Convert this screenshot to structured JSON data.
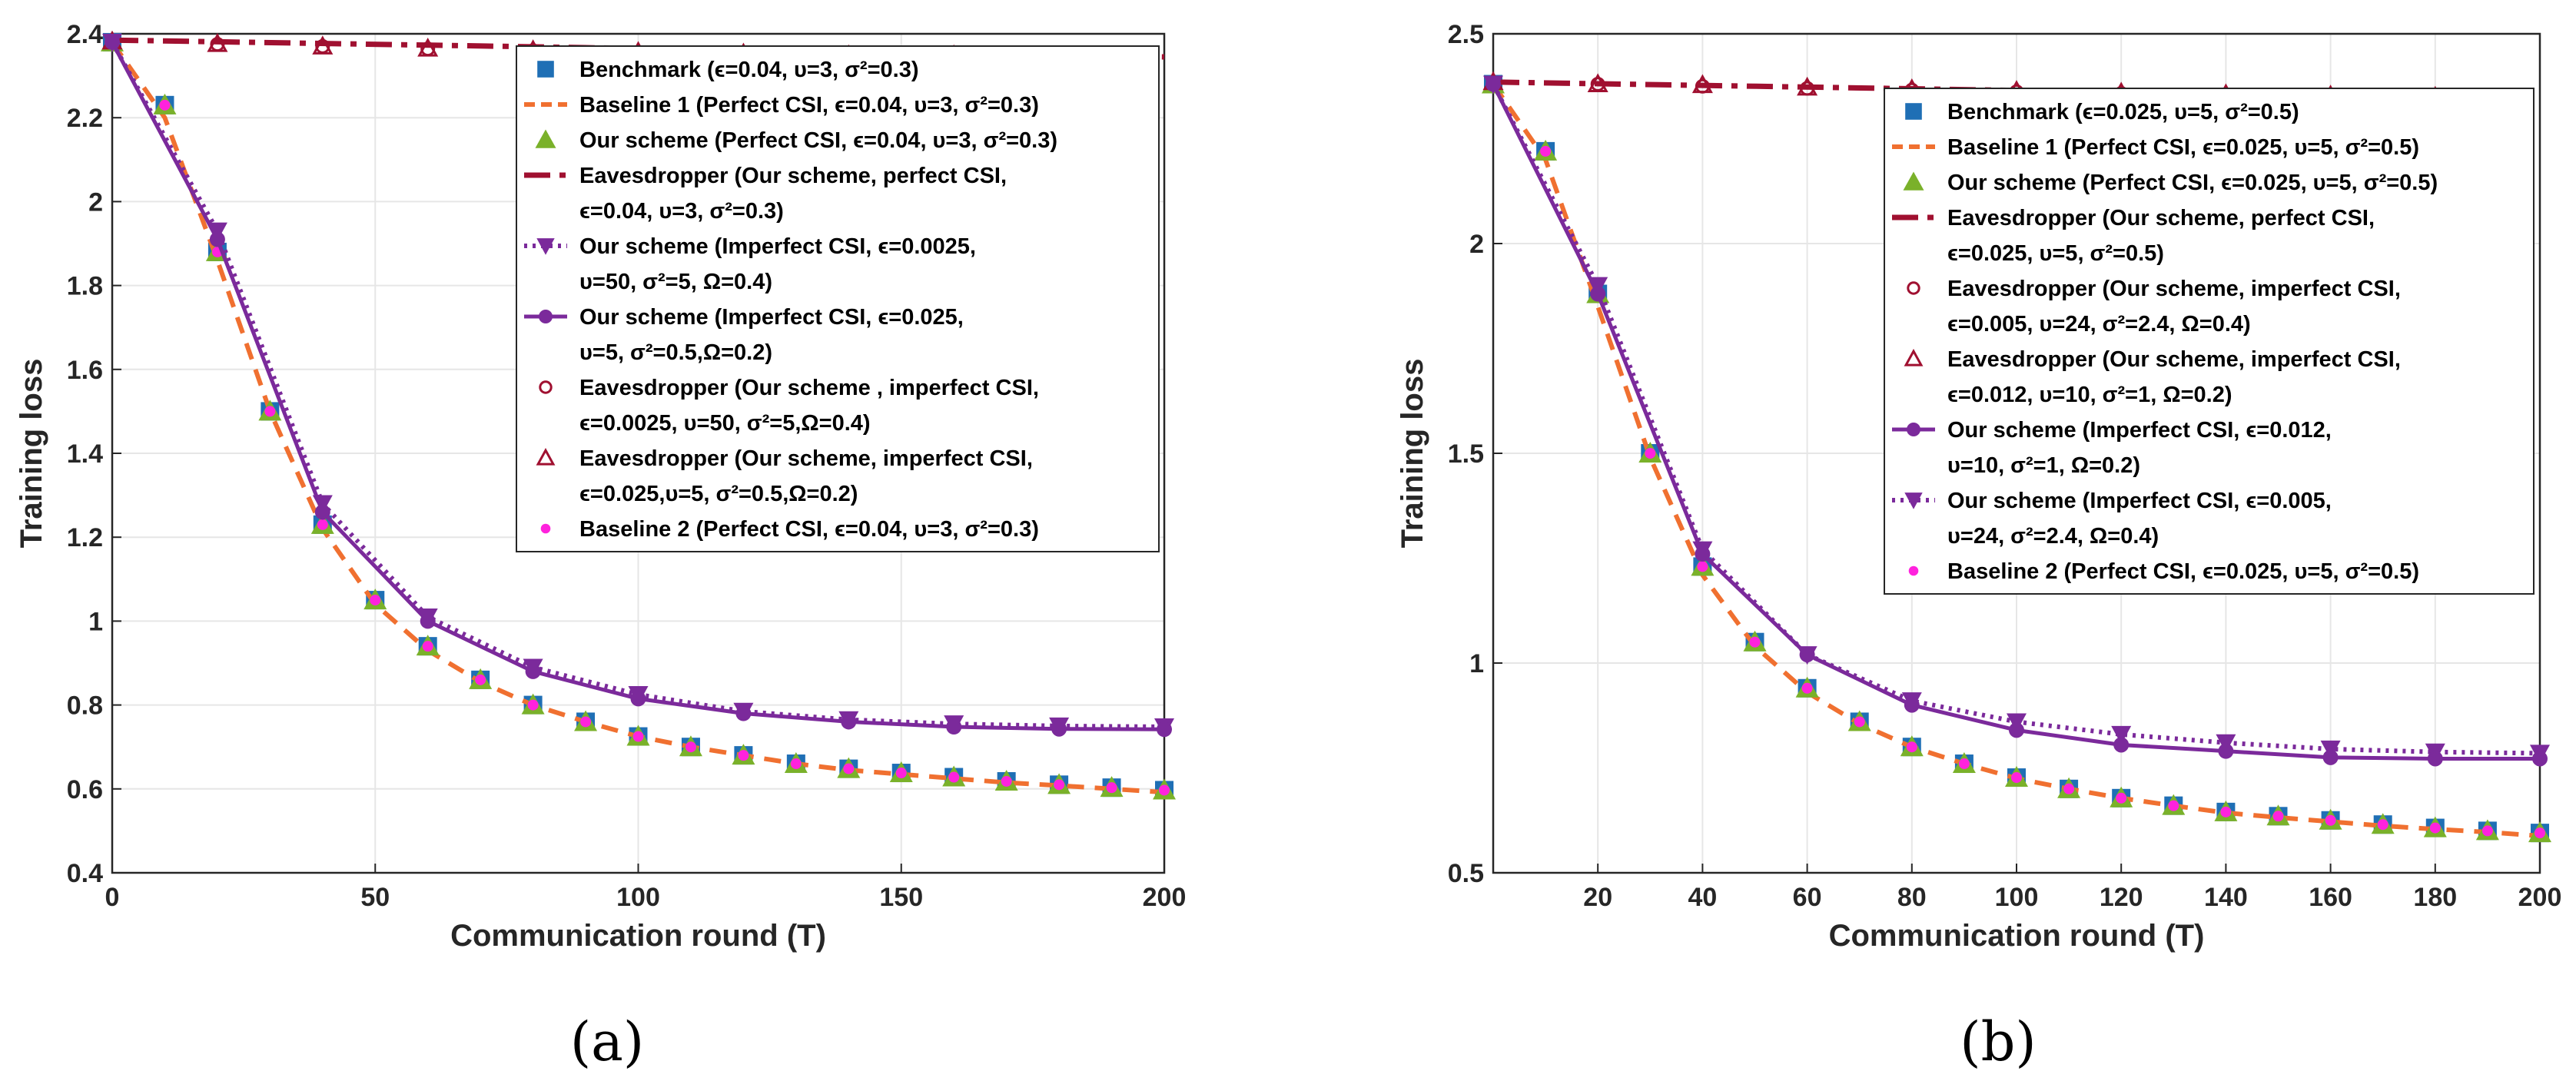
{
  "colors": {
    "benchmark": "#1f6fb5",
    "baseline1": "#f07030",
    "ours_perfect": "#7ab12a",
    "eavesdropper": "#a01030",
    "ours_imperfect": "#7b2a9b",
    "baseline2": "#ff22dd",
    "grid": "#e6e6e6",
    "axis": "#262626"
  },
  "chart_data": [
    {
      "panel": "(a)",
      "type": "line",
      "xlabel": "Communication round (T)",
      "ylabel": "Training loss",
      "xlim": [
        0,
        200
      ],
      "ylim": [
        0.4,
        2.4
      ],
      "xticks": [
        0,
        50,
        100,
        150,
        200
      ],
      "xtick_labels": [
        "0",
        "50",
        "100",
        "150",
        "200"
      ],
      "yticks": [
        0.4,
        0.6,
        0.8,
        1.0,
        1.2,
        1.4,
        1.6,
        1.8,
        2.0,
        2.2,
        2.4
      ],
      "ytick_labels": [
        "0.4",
        "0.6",
        "0.8",
        "1",
        "1.2",
        "1.4",
        "1.6",
        "1.8",
        "2",
        "2.2",
        "2.4"
      ],
      "grid": true,
      "legend_position": "top-right",
      "legend": [
        {
          "key": "benchmark",
          "lines": [
            "Benchmark (ϵ=0.04, υ=3, σ²=0.3)"
          ]
        },
        {
          "key": "baseline1",
          "lines": [
            "Baseline 1 (Perfect CSI, ϵ=0.04, υ=3, σ²=0.3)"
          ]
        },
        {
          "key": "ours_perfect",
          "lines": [
            "Our scheme (Perfect CSI, ϵ=0.04, υ=3, σ²=0.3)"
          ]
        },
        {
          "key": "eve_perfect",
          "lines": [
            "Eavesdropper (Our scheme, perfect CSI,",
            "ϵ=0.04, υ=3, σ²=0.3)"
          ]
        },
        {
          "key": "ours_imp_tri",
          "lines": [
            "Our scheme (Imperfect CSI, ϵ=0.0025,",
            "υ=50, σ²=5, Ω=0.4)"
          ]
        },
        {
          "key": "ours_imp_circ",
          "lines": [
            "Our scheme (Imperfect CSI, ϵ=0.025,",
            "υ=5, σ²=0.5,Ω=0.2)"
          ]
        },
        {
          "key": "eve_imp_circ",
          "lines": [
            "Eavesdropper (Our scheme , imperfect CSI,",
            " ϵ=0.0025, υ=50, σ²=5,Ω=0.4)"
          ]
        },
        {
          "key": "eve_imp_tri",
          "lines": [
            "Eavesdropper (Our scheme, imperfect CSI,",
            "ϵ=0.025,υ=5, σ²=0.5,Ω=0.2)"
          ]
        },
        {
          "key": "baseline2",
          "lines": [
            "Baseline 2 (Perfect CSI, ϵ=0.04, υ=3, σ²=0.3)"
          ]
        }
      ],
      "series": [
        {
          "key": "benchmark",
          "style": "marker-square",
          "x": [
            0,
            10,
            20,
            30,
            40,
            50,
            60,
            70,
            80,
            90,
            100,
            110,
            120,
            130,
            140,
            150,
            160,
            170,
            180,
            190,
            200
          ],
          "y": [
            2.38,
            2.23,
            1.88,
            1.5,
            1.23,
            1.05,
            0.94,
            0.86,
            0.8,
            0.76,
            0.725,
            0.7,
            0.68,
            0.66,
            0.648,
            0.638,
            0.628,
            0.618,
            0.61,
            0.603,
            0.597
          ]
        },
        {
          "key": "baseline1",
          "style": "dashed-orange",
          "x": [
            0,
            10,
            20,
            30,
            40,
            50,
            60,
            70,
            80,
            90,
            100,
            110,
            120,
            130,
            140,
            150,
            160,
            170,
            180,
            190,
            200
          ],
          "y": [
            2.38,
            2.2,
            1.86,
            1.5,
            1.22,
            1.04,
            0.93,
            0.855,
            0.8,
            0.76,
            0.725,
            0.7,
            0.68,
            0.66,
            0.645,
            0.635,
            0.625,
            0.615,
            0.608,
            0.6,
            0.592
          ]
        },
        {
          "key": "ours_perfect",
          "style": "marker-triangle-green",
          "x": [
            0,
            10,
            20,
            30,
            40,
            50,
            60,
            70,
            80,
            90,
            100,
            110,
            120,
            130,
            140,
            150,
            160,
            170,
            180,
            190,
            200
          ],
          "y": [
            2.38,
            2.23,
            1.88,
            1.5,
            1.23,
            1.05,
            0.94,
            0.86,
            0.8,
            0.76,
            0.725,
            0.7,
            0.68,
            0.66,
            0.648,
            0.638,
            0.628,
            0.618,
            0.61,
            0.603,
            0.597
          ]
        },
        {
          "key": "baseline2",
          "style": "marker-dot-magenta",
          "x": [
            0,
            10,
            20,
            30,
            40,
            50,
            60,
            70,
            80,
            90,
            100,
            110,
            120,
            130,
            140,
            150,
            160,
            170,
            180,
            190,
            200
          ],
          "y": [
            2.38,
            2.23,
            1.88,
            1.5,
            1.23,
            1.05,
            0.94,
            0.86,
            0.8,
            0.76,
            0.725,
            0.7,
            0.68,
            0.66,
            0.648,
            0.638,
            0.628,
            0.618,
            0.61,
            0.603,
            0.597
          ]
        },
        {
          "key": "eve_perfect",
          "style": "dashdot-red",
          "x": [
            0,
            200
          ],
          "y": [
            2.385,
            2.345
          ]
        },
        {
          "key": "eve_imp_circ",
          "style": "marker-circle-red",
          "x": [
            0,
            20,
            40,
            60,
            80,
            100,
            120,
            140,
            160,
            180
          ],
          "y": [
            2.382,
            2.375,
            2.37,
            2.364,
            2.36,
            2.356,
            2.352,
            2.348,
            2.348,
            2.345
          ]
        },
        {
          "key": "eve_imp_tri",
          "style": "marker-triangle-red",
          "x": [
            0,
            20,
            40,
            60,
            80,
            100,
            120,
            140,
            160,
            180
          ],
          "y": [
            2.382,
            2.376,
            2.37,
            2.365,
            2.361,
            2.357,
            2.353,
            2.349,
            2.349,
            2.346
          ]
        },
        {
          "key": "ours_imp_tri",
          "style": "dotted-purple-tri",
          "x": [
            0,
            20,
            40,
            60,
            80,
            100,
            120,
            140,
            160,
            180,
            200
          ],
          "y": [
            2.38,
            1.93,
            1.28,
            1.01,
            0.89,
            0.825,
            0.785,
            0.765,
            0.755,
            0.75,
            0.748
          ]
        },
        {
          "key": "ours_imp_circ",
          "style": "solid-purple-circle",
          "x": [
            0,
            20,
            40,
            60,
            80,
            100,
            120,
            140,
            160,
            180,
            200
          ],
          "y": [
            2.38,
            1.91,
            1.26,
            1.0,
            0.88,
            0.815,
            0.78,
            0.76,
            0.748,
            0.743,
            0.742
          ]
        }
      ]
    },
    {
      "panel": "(b)",
      "type": "line",
      "xlabel": "Communication round (T)",
      "ylabel": "Training loss",
      "xlim": [
        0,
        200
      ],
      "ylim": [
        0.5,
        2.5
      ],
      "xticks": [
        20,
        40,
        60,
        80,
        100,
        120,
        140,
        160,
        180,
        200
      ],
      "xtick_labels": [
        "20",
        "40",
        "60",
        "80",
        "100",
        "120",
        "140",
        "160",
        "180",
        "200"
      ],
      "yticks": [
        0.5,
        1.0,
        1.5,
        2.0,
        2.5
      ],
      "ytick_labels": [
        "0.5",
        "1",
        "1.5",
        "2",
        "2.5"
      ],
      "grid": true,
      "legend_position": "top-right",
      "legend": [
        {
          "key": "benchmark",
          "lines": [
            "Benchmark (ϵ=0.025, υ=5, σ²=0.5)"
          ]
        },
        {
          "key": "baseline1",
          "lines": [
            "Baseline 1 (Perfect CSI, ϵ=0.025, υ=5, σ²=0.5)"
          ]
        },
        {
          "key": "ours_perfect",
          "lines": [
            "Our scheme (Perfect CSI, ϵ=0.025, υ=5, σ²=0.5)"
          ]
        },
        {
          "key": "eve_perfect",
          "lines": [
            "Eavesdropper (Our scheme, perfect CSI,",
            "ϵ=0.025, υ=5, σ²=0.5)"
          ]
        },
        {
          "key": "eve_imp_circ",
          "lines": [
            "Eavesdropper (Our scheme, imperfect CSI,",
            "ϵ=0.005, υ=24, σ²=2.4, Ω=0.4)"
          ]
        },
        {
          "key": "eve_imp_tri",
          "lines": [
            "Eavesdropper (Our scheme, imperfect CSI,",
            "ϵ=0.012, υ=10, σ²=1, Ω=0.2)"
          ]
        },
        {
          "key": "ours_imp_circ",
          "lines": [
            "Our scheme (Imperfect CSI, ϵ=0.012,",
            "υ=10, σ²=1, Ω=0.2)"
          ]
        },
        {
          "key": "ours_imp_tri",
          "lines": [
            "Our scheme (Imperfect CSI, ϵ=0.005,",
            " υ=24, σ²=2.4, Ω=0.4)"
          ]
        },
        {
          "key": "baseline2",
          "lines": [
            "Baseline 2 (Perfect CSI, ϵ=0.025, υ=5, σ²=0.5)"
          ]
        }
      ],
      "series": [
        {
          "key": "benchmark",
          "style": "marker-square",
          "x": [
            0,
            10,
            20,
            30,
            40,
            50,
            60,
            70,
            80,
            90,
            100,
            110,
            120,
            130,
            140,
            150,
            160,
            170,
            180,
            190,
            200
          ],
          "y": [
            2.38,
            2.22,
            1.88,
            1.5,
            1.23,
            1.05,
            0.94,
            0.86,
            0.8,
            0.76,
            0.727,
            0.7,
            0.678,
            0.66,
            0.645,
            0.635,
            0.625,
            0.615,
            0.607,
            0.6,
            0.595
          ]
        },
        {
          "key": "baseline1",
          "style": "dashed-orange",
          "x": [
            0,
            10,
            20,
            30,
            40,
            50,
            60,
            70,
            80,
            90,
            100,
            110,
            120,
            130,
            140,
            150,
            160,
            170,
            180,
            190,
            200
          ],
          "y": [
            2.38,
            2.2,
            1.85,
            1.49,
            1.21,
            1.04,
            0.93,
            0.855,
            0.8,
            0.76,
            0.725,
            0.7,
            0.678,
            0.66,
            0.643,
            0.632,
            0.622,
            0.612,
            0.604,
            0.597,
            0.588
          ]
        },
        {
          "key": "ours_perfect",
          "style": "marker-triangle-green",
          "x": [
            0,
            10,
            20,
            30,
            40,
            50,
            60,
            70,
            80,
            90,
            100,
            110,
            120,
            130,
            140,
            150,
            160,
            170,
            180,
            190,
            200
          ],
          "y": [
            2.38,
            2.22,
            1.88,
            1.5,
            1.23,
            1.05,
            0.94,
            0.86,
            0.8,
            0.76,
            0.727,
            0.7,
            0.678,
            0.66,
            0.645,
            0.635,
            0.625,
            0.615,
            0.607,
            0.6,
            0.595
          ]
        },
        {
          "key": "baseline2",
          "style": "marker-dot-magenta",
          "x": [
            0,
            10,
            20,
            30,
            40,
            50,
            60,
            70,
            80,
            90,
            100,
            110,
            120,
            130,
            140,
            150,
            160,
            170,
            180,
            190,
            200
          ],
          "y": [
            2.38,
            2.22,
            1.88,
            1.5,
            1.23,
            1.05,
            0.94,
            0.86,
            0.8,
            0.76,
            0.727,
            0.7,
            0.678,
            0.66,
            0.645,
            0.635,
            0.625,
            0.615,
            0.607,
            0.6,
            0.595
          ]
        },
        {
          "key": "eve_perfect",
          "style": "dashdot-red",
          "x": [
            0,
            200
          ],
          "y": [
            2.385,
            2.345
          ]
        },
        {
          "key": "eve_imp_circ",
          "style": "marker-circle-red",
          "x": [
            0,
            20,
            40,
            60,
            80,
            100,
            120,
            140,
            160,
            180
          ],
          "y": [
            2.383,
            2.38,
            2.375,
            2.37,
            2.366,
            2.362,
            2.358,
            2.354,
            2.35,
            2.348
          ]
        },
        {
          "key": "eve_imp_tri",
          "style": "marker-triangle-red",
          "x": [
            0,
            20,
            40,
            60,
            80,
            100,
            120,
            140,
            160,
            180
          ],
          "y": [
            2.385,
            2.38,
            2.378,
            2.372,
            2.368,
            2.364,
            2.36,
            2.356,
            2.353,
            2.35
          ]
        },
        {
          "key": "ours_imp_tri",
          "style": "dotted-purple-tri",
          "x": [
            0,
            20,
            40,
            60,
            80,
            100,
            120,
            140,
            160,
            180,
            200
          ],
          "y": [
            2.38,
            1.9,
            1.27,
            1.02,
            0.91,
            0.86,
            0.83,
            0.81,
            0.795,
            0.788,
            0.785
          ]
        },
        {
          "key": "ours_imp_circ",
          "style": "solid-purple-circle",
          "x": [
            0,
            20,
            40,
            60,
            80,
            100,
            120,
            140,
            160,
            180,
            200
          ],
          "y": [
            2.38,
            1.88,
            1.26,
            1.02,
            0.9,
            0.84,
            0.805,
            0.79,
            0.775,
            0.772,
            0.772
          ]
        }
      ]
    }
  ],
  "captions": [
    "(a)",
    "(b)"
  ]
}
